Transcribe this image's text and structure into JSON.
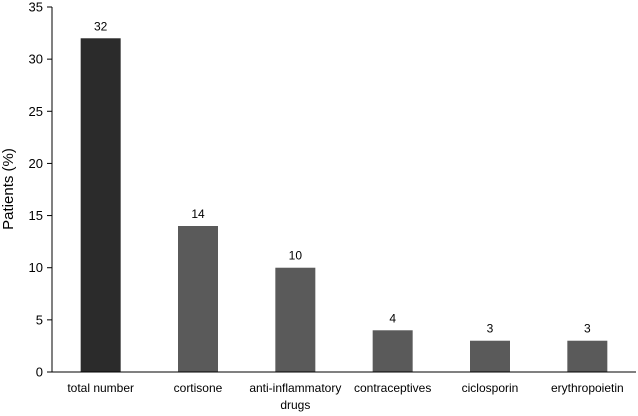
{
  "chart_data": {
    "type": "bar",
    "title": "",
    "xlabel": "",
    "ylabel": "Patients (%)",
    "ylim": [
      0,
      35
    ],
    "yticks": [
      0,
      5,
      10,
      15,
      20,
      25,
      30,
      35
    ],
    "grid": false,
    "legend": "none",
    "categories": [
      [
        "total number"
      ],
      [
        "cortisone"
      ],
      [
        "anti-inflammatory",
        "drugs"
      ],
      [
        "contraceptives"
      ],
      [
        "ciclosporin"
      ],
      [
        "erythropoietin"
      ]
    ],
    "values": [
      32,
      14,
      10,
      4,
      3,
      3
    ],
    "data_labels": [
      "32",
      "14",
      "10",
      "4",
      "3",
      "3"
    ],
    "colors": [
      "#2b2b2b",
      "#5a5a5a",
      "#5a5a5a",
      "#5a5a5a",
      "#5a5a5a",
      "#5a5a5a"
    ]
  }
}
